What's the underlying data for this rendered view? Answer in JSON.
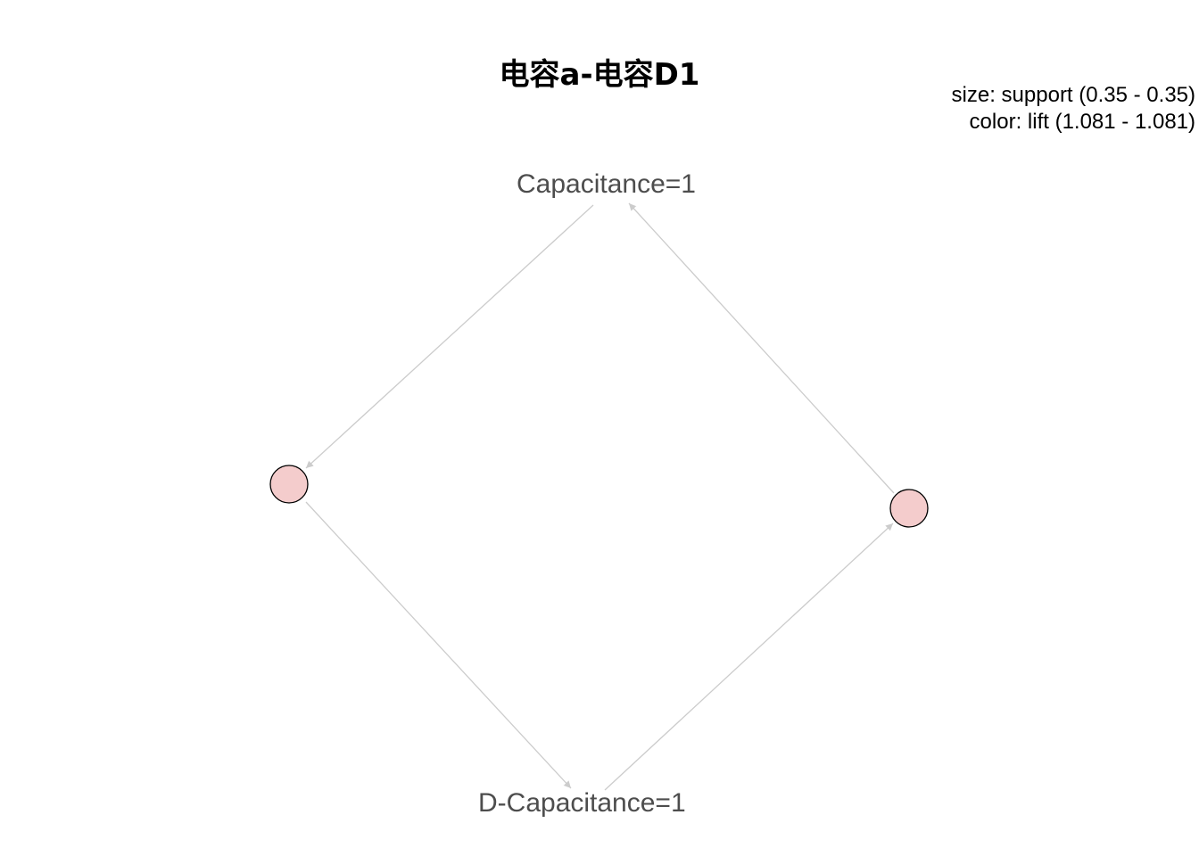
{
  "title": "电容a-电容D1",
  "legend": {
    "size_text": "size: support (0.35 - 0.35)",
    "color_text": "color: lift (1.081 - 1.081)"
  },
  "items": {
    "capacitance": "Capacitance=1",
    "d_capacitance": "D-Capacitance=1"
  },
  "rules": [
    {
      "support": 0.35,
      "lift": 1.081
    },
    {
      "support": 0.35,
      "lift": 1.081
    }
  ],
  "colors": {
    "rule_node_fill": "#f4cccc",
    "rule_node_stroke": "#000000",
    "edge": "#cccccc",
    "label": "#4d4d4d"
  }
}
